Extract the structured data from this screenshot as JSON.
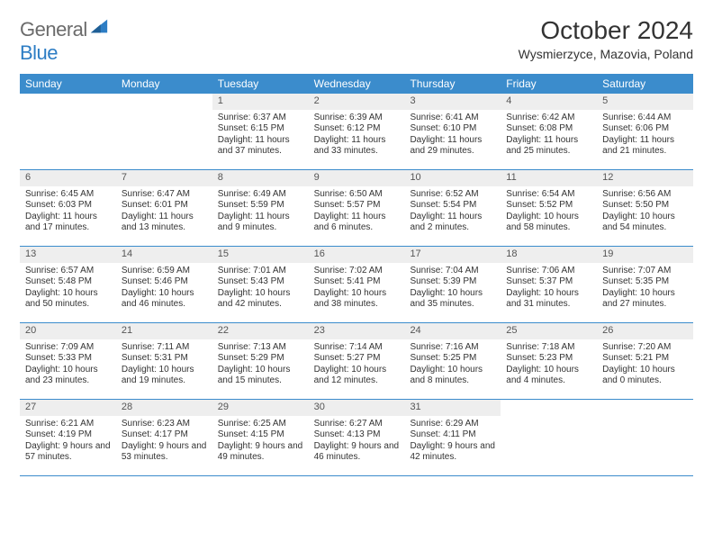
{
  "brand": {
    "text_a": "General",
    "text_b": "Blue"
  },
  "title": "October 2024",
  "location": "Wysmierzyce, Mazovia, Poland",
  "colors": {
    "header_bg": "#3b8ccc",
    "header_text": "#ffffff",
    "daynum_bg": "#eeeeee",
    "daynum_text": "#555555",
    "body_text": "#333333",
    "rule": "#3b8ccc",
    "brand_gray": "#6b6b6b",
    "brand_blue": "#2d7dc4",
    "page_bg": "#ffffff"
  },
  "typography": {
    "title_fontsize": 28,
    "location_fontsize": 14,
    "dayheader_fontsize": 12,
    "daynum_fontsize": 11,
    "cell_fontsize": 10,
    "logo_fontsize": 22
  },
  "day_headers": [
    "Sunday",
    "Monday",
    "Tuesday",
    "Wednesday",
    "Thursday",
    "Friday",
    "Saturday"
  ],
  "weeks": [
    [
      {
        "n": "",
        "sr": "",
        "ss": "",
        "dl": "",
        "empty": true
      },
      {
        "n": "",
        "sr": "",
        "ss": "",
        "dl": "",
        "empty": true
      },
      {
        "n": "1",
        "sr": "Sunrise: 6:37 AM",
        "ss": "Sunset: 6:15 PM",
        "dl": "Daylight: 11 hours and 37 minutes."
      },
      {
        "n": "2",
        "sr": "Sunrise: 6:39 AM",
        "ss": "Sunset: 6:12 PM",
        "dl": "Daylight: 11 hours and 33 minutes."
      },
      {
        "n": "3",
        "sr": "Sunrise: 6:41 AM",
        "ss": "Sunset: 6:10 PM",
        "dl": "Daylight: 11 hours and 29 minutes."
      },
      {
        "n": "4",
        "sr": "Sunrise: 6:42 AM",
        "ss": "Sunset: 6:08 PM",
        "dl": "Daylight: 11 hours and 25 minutes."
      },
      {
        "n": "5",
        "sr": "Sunrise: 6:44 AM",
        "ss": "Sunset: 6:06 PM",
        "dl": "Daylight: 11 hours and 21 minutes."
      }
    ],
    [
      {
        "n": "6",
        "sr": "Sunrise: 6:45 AM",
        "ss": "Sunset: 6:03 PM",
        "dl": "Daylight: 11 hours and 17 minutes."
      },
      {
        "n": "7",
        "sr": "Sunrise: 6:47 AM",
        "ss": "Sunset: 6:01 PM",
        "dl": "Daylight: 11 hours and 13 minutes."
      },
      {
        "n": "8",
        "sr": "Sunrise: 6:49 AM",
        "ss": "Sunset: 5:59 PM",
        "dl": "Daylight: 11 hours and 9 minutes."
      },
      {
        "n": "9",
        "sr": "Sunrise: 6:50 AM",
        "ss": "Sunset: 5:57 PM",
        "dl": "Daylight: 11 hours and 6 minutes."
      },
      {
        "n": "10",
        "sr": "Sunrise: 6:52 AM",
        "ss": "Sunset: 5:54 PM",
        "dl": "Daylight: 11 hours and 2 minutes."
      },
      {
        "n": "11",
        "sr": "Sunrise: 6:54 AM",
        "ss": "Sunset: 5:52 PM",
        "dl": "Daylight: 10 hours and 58 minutes."
      },
      {
        "n": "12",
        "sr": "Sunrise: 6:56 AM",
        "ss": "Sunset: 5:50 PM",
        "dl": "Daylight: 10 hours and 54 minutes."
      }
    ],
    [
      {
        "n": "13",
        "sr": "Sunrise: 6:57 AM",
        "ss": "Sunset: 5:48 PM",
        "dl": "Daylight: 10 hours and 50 minutes."
      },
      {
        "n": "14",
        "sr": "Sunrise: 6:59 AM",
        "ss": "Sunset: 5:46 PM",
        "dl": "Daylight: 10 hours and 46 minutes."
      },
      {
        "n": "15",
        "sr": "Sunrise: 7:01 AM",
        "ss": "Sunset: 5:43 PM",
        "dl": "Daylight: 10 hours and 42 minutes."
      },
      {
        "n": "16",
        "sr": "Sunrise: 7:02 AM",
        "ss": "Sunset: 5:41 PM",
        "dl": "Daylight: 10 hours and 38 minutes."
      },
      {
        "n": "17",
        "sr": "Sunrise: 7:04 AM",
        "ss": "Sunset: 5:39 PM",
        "dl": "Daylight: 10 hours and 35 minutes."
      },
      {
        "n": "18",
        "sr": "Sunrise: 7:06 AM",
        "ss": "Sunset: 5:37 PM",
        "dl": "Daylight: 10 hours and 31 minutes."
      },
      {
        "n": "19",
        "sr": "Sunrise: 7:07 AM",
        "ss": "Sunset: 5:35 PM",
        "dl": "Daylight: 10 hours and 27 minutes."
      }
    ],
    [
      {
        "n": "20",
        "sr": "Sunrise: 7:09 AM",
        "ss": "Sunset: 5:33 PM",
        "dl": "Daylight: 10 hours and 23 minutes."
      },
      {
        "n": "21",
        "sr": "Sunrise: 7:11 AM",
        "ss": "Sunset: 5:31 PM",
        "dl": "Daylight: 10 hours and 19 minutes."
      },
      {
        "n": "22",
        "sr": "Sunrise: 7:13 AM",
        "ss": "Sunset: 5:29 PM",
        "dl": "Daylight: 10 hours and 15 minutes."
      },
      {
        "n": "23",
        "sr": "Sunrise: 7:14 AM",
        "ss": "Sunset: 5:27 PM",
        "dl": "Daylight: 10 hours and 12 minutes."
      },
      {
        "n": "24",
        "sr": "Sunrise: 7:16 AM",
        "ss": "Sunset: 5:25 PM",
        "dl": "Daylight: 10 hours and 8 minutes."
      },
      {
        "n": "25",
        "sr": "Sunrise: 7:18 AM",
        "ss": "Sunset: 5:23 PM",
        "dl": "Daylight: 10 hours and 4 minutes."
      },
      {
        "n": "26",
        "sr": "Sunrise: 7:20 AM",
        "ss": "Sunset: 5:21 PM",
        "dl": "Daylight: 10 hours and 0 minutes."
      }
    ],
    [
      {
        "n": "27",
        "sr": "Sunrise: 6:21 AM",
        "ss": "Sunset: 4:19 PM",
        "dl": "Daylight: 9 hours and 57 minutes."
      },
      {
        "n": "28",
        "sr": "Sunrise: 6:23 AM",
        "ss": "Sunset: 4:17 PM",
        "dl": "Daylight: 9 hours and 53 minutes."
      },
      {
        "n": "29",
        "sr": "Sunrise: 6:25 AM",
        "ss": "Sunset: 4:15 PM",
        "dl": "Daylight: 9 hours and 49 minutes."
      },
      {
        "n": "30",
        "sr": "Sunrise: 6:27 AM",
        "ss": "Sunset: 4:13 PM",
        "dl": "Daylight: 9 hours and 46 minutes."
      },
      {
        "n": "31",
        "sr": "Sunrise: 6:29 AM",
        "ss": "Sunset: 4:11 PM",
        "dl": "Daylight: 9 hours and 42 minutes."
      },
      {
        "n": "",
        "sr": "",
        "ss": "",
        "dl": "",
        "empty": true
      },
      {
        "n": "",
        "sr": "",
        "ss": "",
        "dl": "",
        "empty": true
      }
    ]
  ]
}
